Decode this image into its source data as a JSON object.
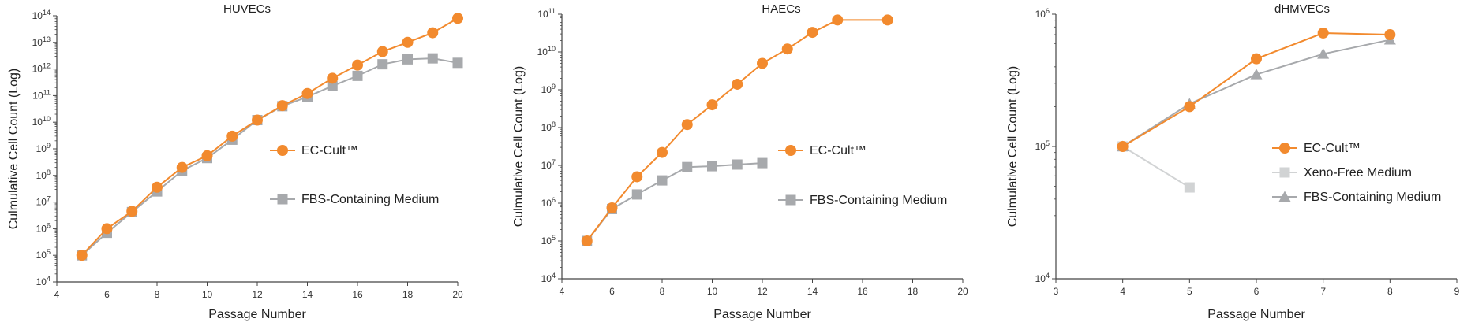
{
  "colors": {
    "orange": "#F28A2E",
    "gray": "#A7A9AC",
    "lightgray": "#D1D3D4",
    "axis": "#444444"
  },
  "chart_data": [
    {
      "type": "line",
      "title": "HUVECs",
      "xlabel": "Passage Number",
      "ylabel": "Culmulative Cell Count (Log)",
      "xlim": [
        4,
        20
      ],
      "xticks": [
        4,
        6,
        8,
        10,
        12,
        14,
        16,
        18,
        20
      ],
      "ylim_log10": [
        4,
        14
      ],
      "yscale": "log",
      "series": [
        {
          "name": "EC-Cult™",
          "marker": "circle",
          "color": "orange",
          "points": [
            [
              5,
              100000.0
            ],
            [
              6,
              1000000.0
            ],
            [
              7,
              4500000.0
            ],
            [
              8,
              36000000.0
            ],
            [
              9,
              200000000.0
            ],
            [
              10,
              550000000.0
            ],
            [
              11,
              3000000000.0
            ],
            [
              12,
              12000000000.0
            ],
            [
              13,
              42000000000.0
            ],
            [
              14,
              120000000000.0
            ],
            [
              15,
              450000000000.0
            ],
            [
              16,
              1400000000000.0
            ],
            [
              17,
              4500000000000.0
            ],
            [
              18,
              10000000000000.0
            ],
            [
              19,
              23000000000000.0
            ],
            [
              20,
              80000000000000.0
            ]
          ]
        },
        {
          "name": "FBS-Containing Medium",
          "marker": "square",
          "color": "gray",
          "points": [
            [
              5,
              100000.0
            ],
            [
              6,
              700000.0
            ],
            [
              7,
              4200000.0
            ],
            [
              8,
              25000000.0
            ],
            [
              9,
              150000000.0
            ],
            [
              10,
              450000000.0
            ],
            [
              11,
              2200000000.0
            ],
            [
              12,
              12000000000.0
            ],
            [
              13,
              40000000000.0
            ],
            [
              14,
              90000000000.0
            ],
            [
              15,
              230000000000.0
            ],
            [
              16,
              550000000000.0
            ],
            [
              17,
              1500000000000.0
            ],
            [
              18,
              2300000000000.0
            ],
            [
              19,
              2500000000000.0
            ],
            [
              20,
              1700000000000.0
            ]
          ]
        }
      ],
      "legend": "right-middle"
    },
    {
      "type": "line",
      "title": "HAECs",
      "xlabel": "Passage Number",
      "ylabel": "Culmulative Cell Count (Log)",
      "xlim": [
        4,
        20
      ],
      "xticks": [
        4,
        6,
        8,
        10,
        12,
        14,
        16,
        18,
        20
      ],
      "ylim_log10": [
        4,
        11
      ],
      "yscale": "log",
      "series": [
        {
          "name": "EC-Cult™",
          "marker": "circle",
          "color": "orange",
          "points": [
            [
              5,
              100000.0
            ],
            [
              6,
              750000.0
            ],
            [
              7,
              5000000.0
            ],
            [
              8,
              22000000.0
            ],
            [
              9,
              120000000.0
            ],
            [
              10,
              400000000.0
            ],
            [
              11,
              1400000000.0
            ],
            [
              12,
              5000000000.0
            ],
            [
              13,
              12000000000.0
            ],
            [
              14,
              33000000000.0
            ],
            [
              15,
              70000000000.0
            ],
            [
              17,
              70000000000.0
            ]
          ]
        },
        {
          "name": "FBS-Containing Medium",
          "marker": "square",
          "color": "gray",
          "points": [
            [
              5,
              100000.0
            ],
            [
              6,
              700000.0
            ],
            [
              7,
              1700000.0
            ],
            [
              8,
              4000000.0
            ],
            [
              9,
              9000000.0
            ],
            [
              10,
              9500000.0
            ],
            [
              11,
              10500000.0
            ],
            [
              12,
              11500000.0
            ]
          ]
        }
      ],
      "legend": "right-middle"
    },
    {
      "type": "line",
      "title": "dHMVECs",
      "xlabel": "Passage Number",
      "ylabel": "Culmulative Cell Count (Log)",
      "xlim": [
        3,
        9
      ],
      "xticks": [
        3,
        4,
        5,
        6,
        7,
        8,
        9
      ],
      "ylim_log10": [
        4,
        6
      ],
      "yscale": "log",
      "series": [
        {
          "name": "EC-Cult™",
          "marker": "circle",
          "color": "orange",
          "points": [
            [
              4,
              100000.0
            ],
            [
              5,
              200000.0
            ],
            [
              6,
              460000.0
            ],
            [
              7,
              720000.0
            ],
            [
              8,
              700000.0
            ]
          ]
        },
        {
          "name": "Xeno-Free Medium",
          "marker": "square",
          "color": "lightgray",
          "points": [
            [
              4,
              100000.0
            ],
            [
              5,
              49000.0
            ]
          ]
        },
        {
          "name": "FBS-Containing Medium",
          "marker": "triangle",
          "color": "gray",
          "points": [
            [
              4,
              100000.0
            ],
            [
              5,
              210000.0
            ],
            [
              6,
              350000.0
            ],
            [
              7,
              500000.0
            ],
            [
              8,
              640000.0
            ]
          ]
        }
      ],
      "legend": "right-middle"
    }
  ]
}
